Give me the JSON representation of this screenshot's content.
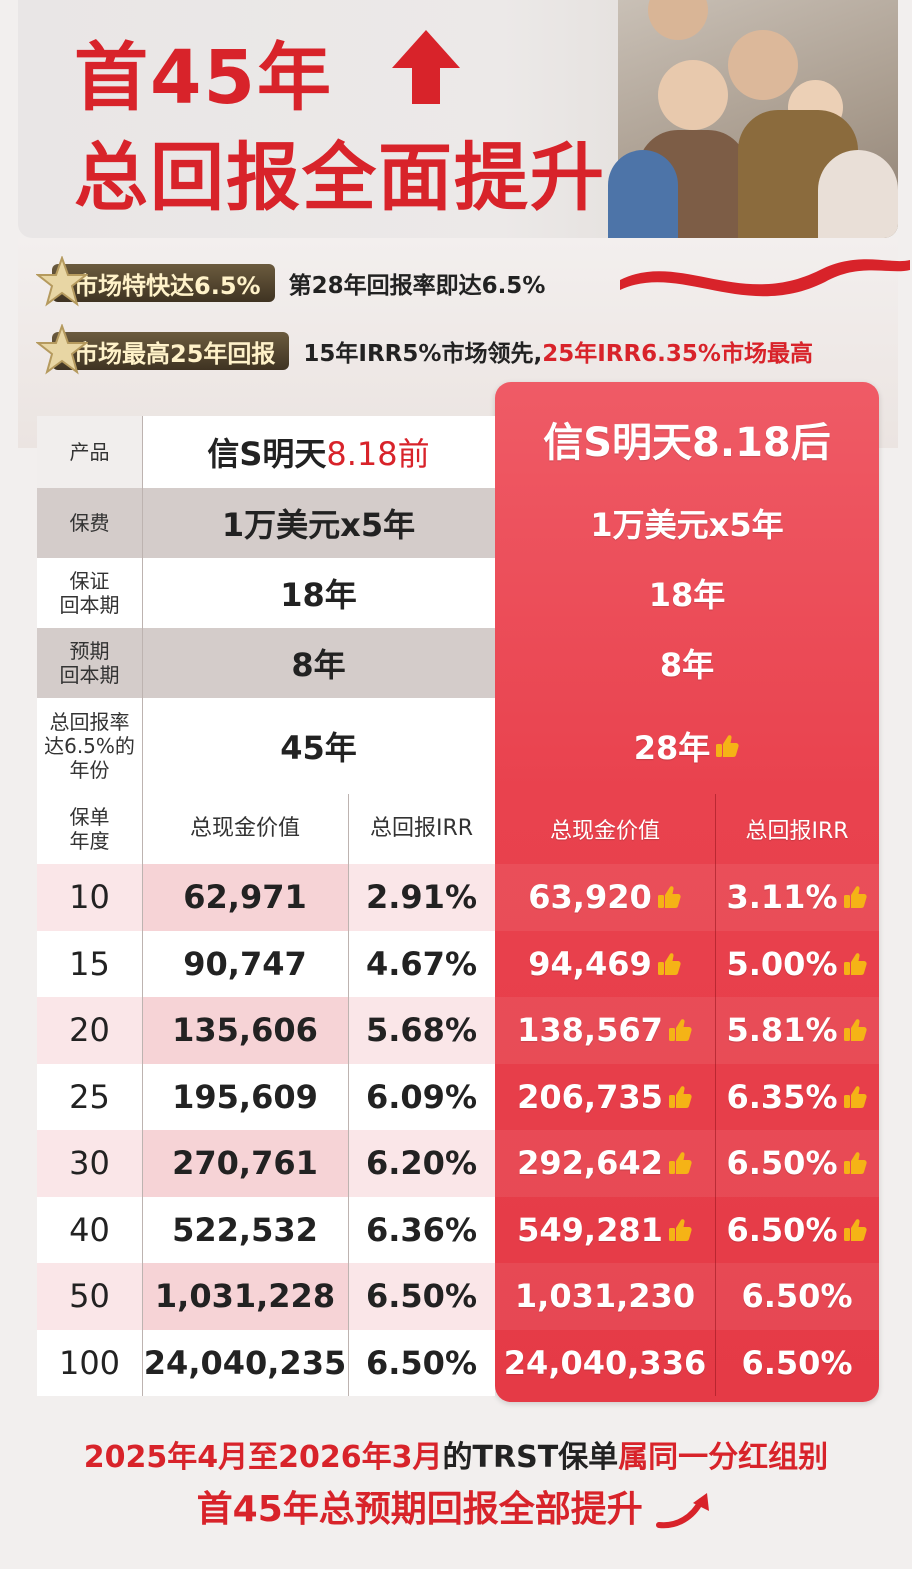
{
  "header": {
    "title_line1": "首45年",
    "title_line2": "总回报全面提升"
  },
  "features": [
    {
      "badge": "市场特快达6.5%",
      "text_black": "第28年回报率即达6.5%",
      "text_red": ""
    },
    {
      "badge": "市场最高25年回报",
      "text_black": "15年IRR5%市场领先,",
      "text_red": "25年IRR6.35%市场最高"
    }
  ],
  "table": {
    "product_label": "产品",
    "before_name_black": "信S明天",
    "before_name_red": "8.18前",
    "after_name": "信S明天8.18后",
    "rows_info": [
      {
        "label": "保费",
        "before": "1万美元x5年",
        "after": "1万美元x5年"
      },
      {
        "label": "保证\n回本期",
        "before": "18年",
        "after": "18年"
      },
      {
        "label": "预期\n回本期",
        "before": "8年",
        "after": "8年"
      },
      {
        "label": "总回报率\n达6.5%的\n年份",
        "before": "45年",
        "after": "28年"
      }
    ],
    "col_headers": {
      "year": "保单\n年度",
      "before_cash": "总现金价值",
      "before_irr": "总回报IRR",
      "after_cash": "总现金价值",
      "after_irr": "总回报IRR"
    },
    "rows": [
      {
        "year": "10",
        "before_cash": "62,971",
        "before_irr": "2.91%",
        "after_cash": "63,920",
        "after_irr": "3.11%",
        "thumb_cash": true,
        "thumb_irr": true
      },
      {
        "year": "15",
        "before_cash": "90,747",
        "before_irr": "4.67%",
        "after_cash": "94,469",
        "after_irr": "5.00%",
        "thumb_cash": true,
        "thumb_irr": true
      },
      {
        "year": "20",
        "before_cash": "135,606",
        "before_irr": "5.68%",
        "after_cash": "138,567",
        "after_irr": "5.81%",
        "thumb_cash": true,
        "thumb_irr": true
      },
      {
        "year": "25",
        "before_cash": "195,609",
        "before_irr": "6.09%",
        "after_cash": "206,735",
        "after_irr": "6.35%",
        "thumb_cash": true,
        "thumb_irr": true
      },
      {
        "year": "30",
        "before_cash": "270,761",
        "before_irr": "6.20%",
        "after_cash": "292,642",
        "after_irr": "6.50%",
        "thumb_cash": true,
        "thumb_irr": true
      },
      {
        "year": "40",
        "before_cash": "522,532",
        "before_irr": "6.36%",
        "after_cash": "549,281",
        "after_irr": "6.50%",
        "thumb_cash": true,
        "thumb_irr": true
      },
      {
        "year": "50",
        "before_cash": "1,031,228",
        "before_irr": "6.50%",
        "after_cash": "1,031,230",
        "after_irr": "6.50%",
        "thumb_cash": false,
        "thumb_irr": false
      },
      {
        "year": "100",
        "before_cash": "24,040,235",
        "before_irr": "6.50%",
        "after_cash": "24,040,336",
        "after_irr": "6.50%",
        "thumb_cash": false,
        "thumb_irr": false
      }
    ]
  },
  "footer": {
    "line1_red_a": "2025年4月至2026年3月",
    "line1_black": "的TRST保单",
    "line1_red_b": "属同一分红组别",
    "line2": "首45年总预期回报全部提升"
  },
  "colors": {
    "brand_red": "#d8232a",
    "panel_red": "#e9424e",
    "thumb_gold": "#f5b316"
  }
}
